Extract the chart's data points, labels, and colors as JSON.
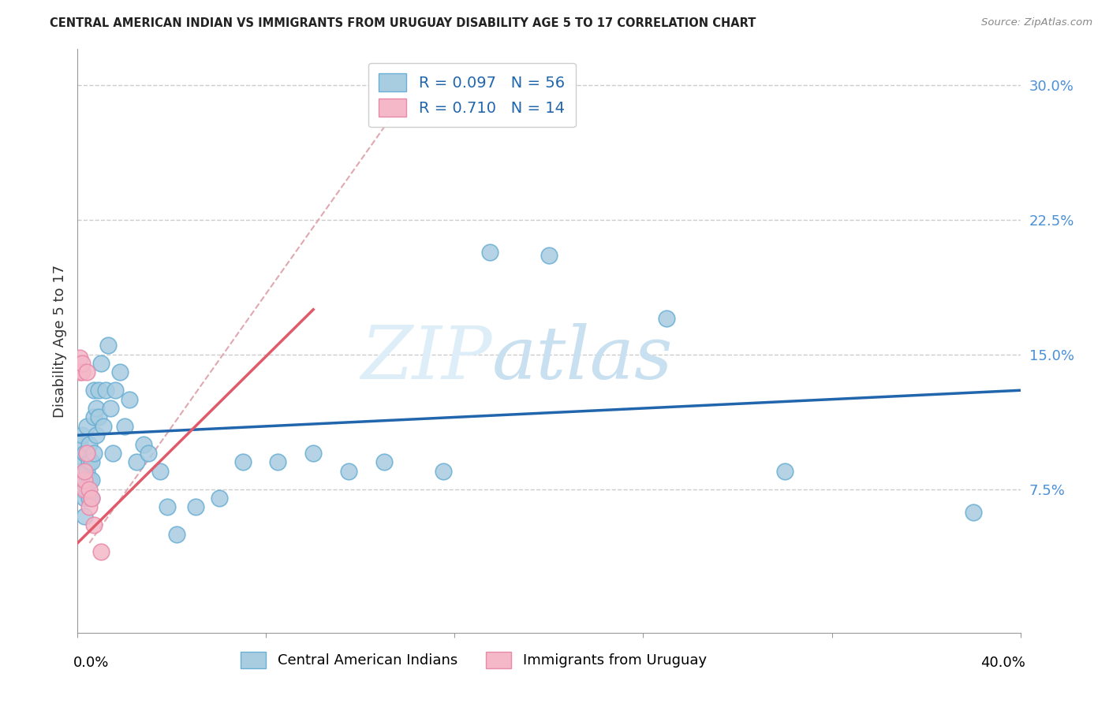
{
  "title": "CENTRAL AMERICAN INDIAN VS IMMIGRANTS FROM URUGUAY DISABILITY AGE 5 TO 17 CORRELATION CHART",
  "source": "Source: ZipAtlas.com",
  "ylabel": "Disability Age 5 to 17",
  "yticks": [
    0.0,
    0.075,
    0.15,
    0.225,
    0.3
  ],
  "ytick_labels": [
    "",
    "7.5%",
    "15.0%",
    "22.5%",
    "30.0%"
  ],
  "xlim": [
    0.0,
    0.4
  ],
  "ylim": [
    -0.005,
    0.32
  ],
  "legend_r1": "R = 0.097",
  "legend_n1": "N = 56",
  "legend_r2": "R = 0.710",
  "legend_n2": "N = 14",
  "blue_color": "#a8cce0",
  "pink_color": "#f4b8c8",
  "blue_edge_color": "#6aafd4",
  "pink_edge_color": "#e88aaa",
  "blue_line_color": "#2166ac",
  "pink_line_color": "#e05a6a",
  "diag_line_color": "#e0a8b0",
  "grid_color": "#cccccc",
  "blue_scatter_x": [
    0.001,
    0.001,
    0.002,
    0.002,
    0.002,
    0.003,
    0.003,
    0.003,
    0.003,
    0.004,
    0.004,
    0.004,
    0.004,
    0.005,
    0.005,
    0.005,
    0.005,
    0.006,
    0.006,
    0.006,
    0.007,
    0.007,
    0.007,
    0.008,
    0.008,
    0.009,
    0.009,
    0.01,
    0.011,
    0.012,
    0.013,
    0.014,
    0.015,
    0.016,
    0.018,
    0.02,
    0.022,
    0.025,
    0.028,
    0.03,
    0.035,
    0.038,
    0.042,
    0.05,
    0.06,
    0.07,
    0.085,
    0.1,
    0.115,
    0.13,
    0.155,
    0.175,
    0.2,
    0.25,
    0.3,
    0.38
  ],
  "blue_scatter_y": [
    0.1,
    0.085,
    0.075,
    0.09,
    0.105,
    0.06,
    0.07,
    0.08,
    0.095,
    0.075,
    0.085,
    0.095,
    0.11,
    0.07,
    0.08,
    0.09,
    0.1,
    0.07,
    0.08,
    0.09,
    0.095,
    0.115,
    0.13,
    0.105,
    0.12,
    0.115,
    0.13,
    0.145,
    0.11,
    0.13,
    0.155,
    0.12,
    0.095,
    0.13,
    0.14,
    0.11,
    0.125,
    0.09,
    0.1,
    0.095,
    0.085,
    0.065,
    0.05,
    0.065,
    0.07,
    0.09,
    0.09,
    0.095,
    0.085,
    0.09,
    0.085,
    0.207,
    0.205,
    0.17,
    0.085,
    0.062
  ],
  "pink_scatter_x": [
    0.001,
    0.001,
    0.002,
    0.002,
    0.003,
    0.003,
    0.003,
    0.004,
    0.004,
    0.005,
    0.005,
    0.006,
    0.007,
    0.01
  ],
  "pink_scatter_y": [
    0.14,
    0.148,
    0.14,
    0.145,
    0.075,
    0.08,
    0.085,
    0.095,
    0.14,
    0.065,
    0.075,
    0.07,
    0.055,
    0.04
  ],
  "blue_line_x": [
    0.0,
    0.4
  ],
  "blue_line_y": [
    0.105,
    0.13
  ],
  "pink_line_x": [
    0.0,
    0.1
  ],
  "pink_line_y": [
    0.045,
    0.175
  ],
  "diag_line_x": [
    0.005,
    0.14
  ],
  "diag_line_y": [
    0.045,
    0.295
  ]
}
